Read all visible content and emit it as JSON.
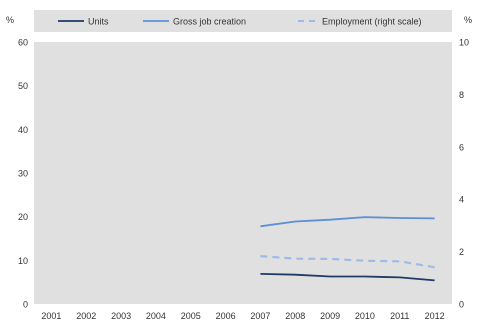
{
  "chart_data": {
    "type": "line",
    "categories": [
      "2001",
      "2002",
      "2003",
      "2004",
      "2005",
      "2006",
      "2007",
      "2008",
      "2009",
      "2010",
      "2011",
      "2012"
    ],
    "y_left": {
      "unit_label": "%",
      "range": [
        0,
        60
      ],
      "ticks": [
        "0",
        "10",
        "20",
        "30",
        "40",
        "50",
        "60"
      ]
    },
    "y_right": {
      "unit_label": "%",
      "range": [
        0,
        10
      ],
      "ticks": [
        "0",
        "2",
        "4",
        "6",
        "8",
        "10"
      ]
    },
    "series": [
      {
        "name": "Units",
        "axis": "left",
        "style": "solid",
        "color": "#1f3a64",
        "values": [
          null,
          null,
          null,
          null,
          null,
          null,
          6.9,
          6.7,
          6.3,
          6.3,
          6.1,
          5.4
        ]
      },
      {
        "name": "Gross job creation",
        "axis": "left",
        "style": "solid",
        "color": "#5b8fd6",
        "values": [
          null,
          null,
          null,
          null,
          null,
          null,
          17.8,
          18.9,
          19.3,
          19.9,
          19.7,
          19.6
        ]
      },
      {
        "name": "Employment (right scale)",
        "axis": "right",
        "style": "dashed",
        "color": "#9dbbe6",
        "values": [
          null,
          null,
          null,
          null,
          null,
          null,
          1.83,
          1.73,
          1.72,
          1.65,
          1.63,
          1.4
        ]
      }
    ],
    "grid": false,
    "legend_position": "top",
    "plot_background": "#e0e0e0"
  }
}
